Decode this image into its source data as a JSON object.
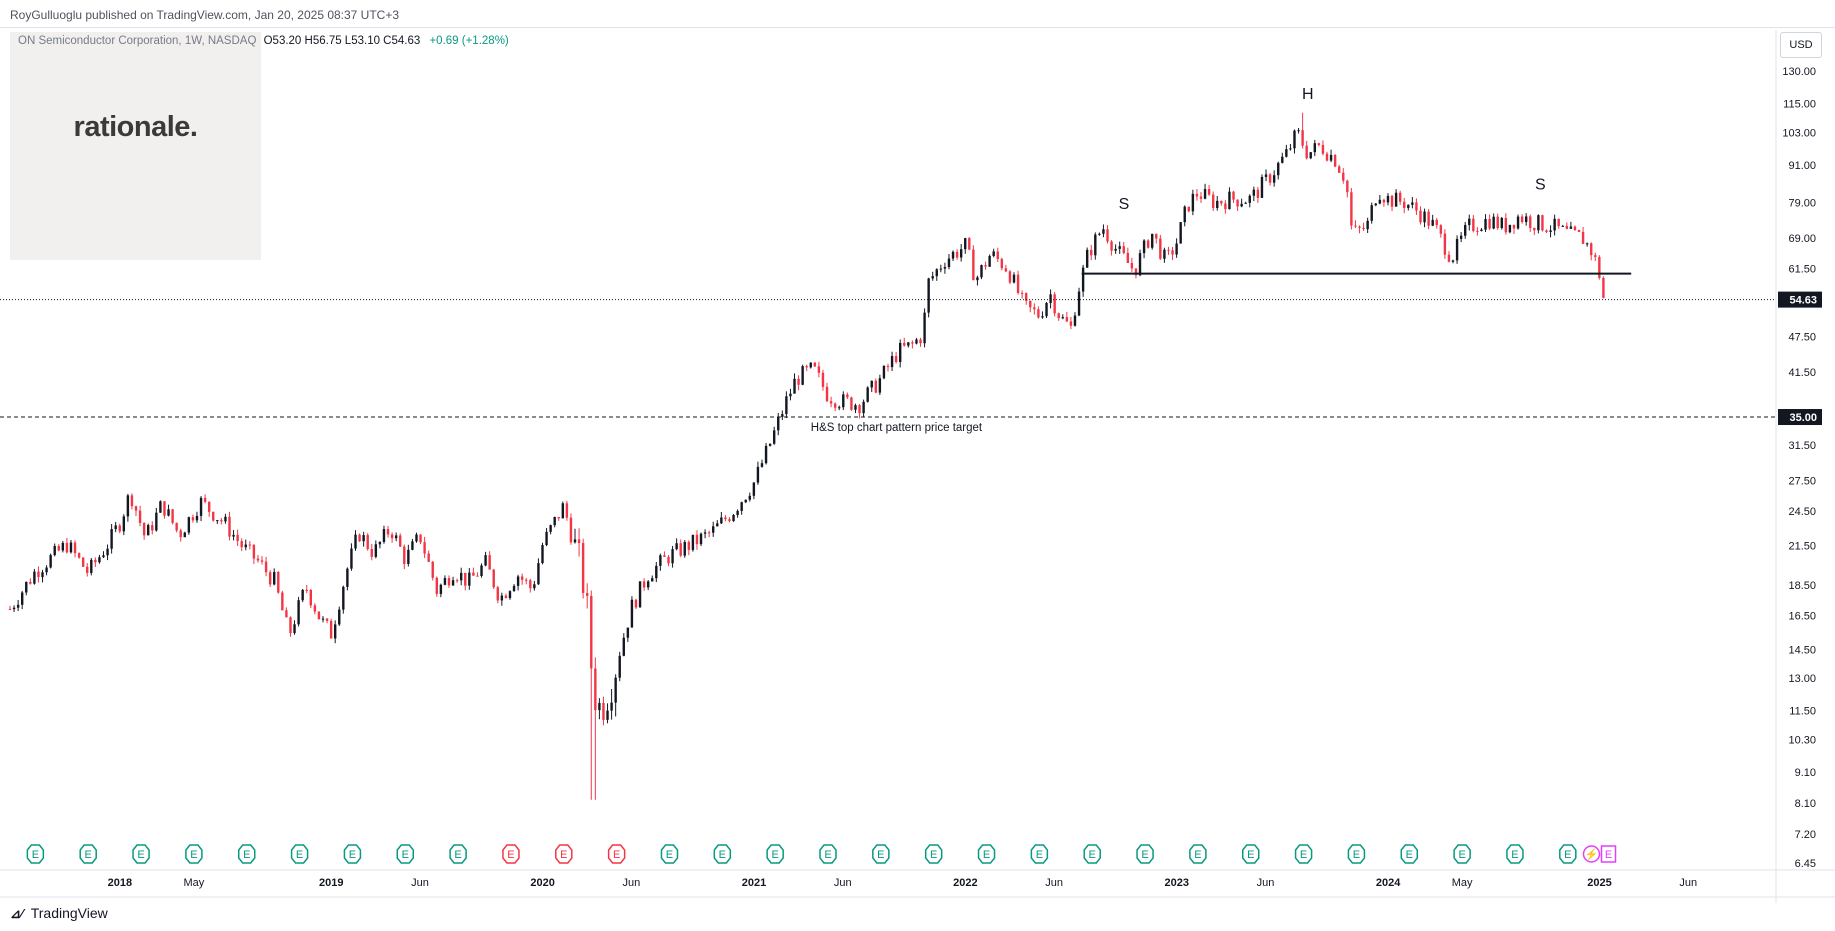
{
  "publisher": "RoyGulluoglu published on TradingView.com, Jan 20, 2025 08:37 UTC+3",
  "legend": {
    "symbol": "ON Semiconductor Corporation, 1W, NASDAQ",
    "ohlc": "O53.20  H56.75  L53.10  C54.63",
    "change": "+0.69 (+1.28%)"
  },
  "logo_text": "rationale.",
  "currency_button": "USD",
  "brand": "TradingView",
  "colors": {
    "up": "#131722",
    "down": "#f23645",
    "accent_purple": "#e040fb",
    "earnings_green": "#089981",
    "earnings_red": "#f23645",
    "price_badge": "#131722",
    "axis_text": "#131722"
  },
  "chart_data": {
    "type": "candlestick",
    "symbol": "ON Semiconductor Corporation",
    "interval": "1W",
    "exchange": "NASDAQ",
    "scale": "log",
    "ylim": [
      6.45,
      130
    ],
    "price_axis_ticks": [
      130.0,
      115.0,
      103.0,
      91.0,
      79.0,
      69.0,
      61.5,
      54.63,
      47.5,
      41.5,
      35.0,
      31.5,
      27.5,
      24.5,
      21.5,
      18.5,
      16.5,
      14.5,
      13.0,
      11.5,
      10.3,
      9.1,
      8.1,
      7.2,
      6.45
    ],
    "price_axis_labels": [
      "130.00",
      "115.00",
      "103.00",
      "91.00",
      "79.00",
      "69.00",
      "61.50",
      "54.63",
      "47.50",
      "41.50",
      "35.00",
      "31.50",
      "27.50",
      "24.50",
      "21.50",
      "18.50",
      "16.50",
      "14.50",
      "13.00",
      "11.50",
      "10.30",
      "9.10",
      "8.10",
      "7.20",
      "6.45"
    ],
    "time_axis_labels": [
      {
        "t": 2018.0,
        "label": "2018",
        "bold": true
      },
      {
        "t": 2018.35,
        "label": "May",
        "bold": false
      },
      {
        "t": 2019.0,
        "label": "2019",
        "bold": true
      },
      {
        "t": 2019.42,
        "label": "Jun",
        "bold": false
      },
      {
        "t": 2020.0,
        "label": "2020",
        "bold": true
      },
      {
        "t": 2020.42,
        "label": "Jun",
        "bold": false
      },
      {
        "t": 2021.0,
        "label": "2021",
        "bold": true
      },
      {
        "t": 2021.42,
        "label": "Jun",
        "bold": false
      },
      {
        "t": 2022.0,
        "label": "2022",
        "bold": true
      },
      {
        "t": 2022.42,
        "label": "Jun",
        "bold": false
      },
      {
        "t": 2023.0,
        "label": "2023",
        "bold": true
      },
      {
        "t": 2023.42,
        "label": "Jun",
        "bold": false
      },
      {
        "t": 2024.0,
        "label": "2024",
        "bold": true
      },
      {
        "t": 2024.35,
        "label": "May",
        "bold": false
      },
      {
        "t": 2025.0,
        "label": "2025",
        "bold": true
      },
      {
        "t": 2025.42,
        "label": "Jun",
        "bold": false
      }
    ],
    "price_path": [
      [
        2017.48,
        16.9
      ],
      [
        2017.6,
        19.5
      ],
      [
        2017.75,
        21.6
      ],
      [
        2017.85,
        19.4
      ],
      [
        2017.95,
        21.8
      ],
      [
        2018.0,
        23.5
      ],
      [
        2018.05,
        26.3
      ],
      [
        2018.12,
        22.1
      ],
      [
        2018.2,
        25.2
      ],
      [
        2018.28,
        22.4
      ],
      [
        2018.38,
        25.4
      ],
      [
        2018.45,
        24.2
      ],
      [
        2018.5,
        23.3
      ],
      [
        2018.58,
        21.4
      ],
      [
        2018.65,
        20.3
      ],
      [
        2018.73,
        18.8
      ],
      [
        2018.8,
        15.3
      ],
      [
        2018.88,
        18.4
      ],
      [
        2018.95,
        16.2
      ],
      [
        2019.0,
        15.4
      ],
      [
        2019.07,
        19.4
      ],
      [
        2019.13,
        22.6
      ],
      [
        2019.2,
        20.9
      ],
      [
        2019.28,
        23.0
      ],
      [
        2019.35,
        20.4
      ],
      [
        2019.42,
        22.3
      ],
      [
        2019.5,
        18.1
      ],
      [
        2019.58,
        19.6
      ],
      [
        2019.65,
        18.7
      ],
      [
        2019.73,
        20.1
      ],
      [
        2019.8,
        17.6
      ],
      [
        2019.88,
        19.3
      ],
      [
        2019.95,
        18.2
      ],
      [
        2020.0,
        21.6
      ],
      [
        2020.07,
        24.0
      ],
      [
        2020.1,
        25.0
      ],
      [
        2020.14,
        22.1
      ],
      [
        2020.2,
        18.4
      ],
      [
        2020.23,
        13.7
      ],
      [
        2020.26,
        11.5
      ],
      [
        2020.3,
        12.2
      ],
      [
        2020.35,
        13.8
      ],
      [
        2020.42,
        17.0
      ],
      [
        2020.5,
        19.3
      ],
      [
        2020.6,
        20.7
      ],
      [
        2020.7,
        21.6
      ],
      [
        2020.8,
        22.6
      ],
      [
        2020.9,
        24.5
      ],
      [
        2021.0,
        27.3
      ],
      [
        2021.08,
        31.9
      ],
      [
        2021.15,
        37.0
      ],
      [
        2021.2,
        40.5
      ],
      [
        2021.28,
        42.0
      ],
      [
        2021.35,
        38.0
      ],
      [
        2021.42,
        37.1
      ],
      [
        2021.5,
        36.8
      ],
      [
        2021.6,
        40.5
      ],
      [
        2021.68,
        44.8
      ],
      [
        2021.75,
        46.0
      ],
      [
        2021.8,
        48.0
      ],
      [
        2021.82,
        58.0
      ],
      [
        2021.9,
        63.5
      ],
      [
        2022.0,
        67.0
      ],
      [
        2022.05,
        59.0
      ],
      [
        2022.12,
        65.0
      ],
      [
        2022.2,
        61.5
      ],
      [
        2022.28,
        53.0
      ],
      [
        2022.35,
        51.5
      ],
      [
        2022.4,
        56.0
      ],
      [
        2022.45,
        51.0
      ],
      [
        2022.5,
        49.0
      ],
      [
        2022.53,
        56.0
      ],
      [
        2022.58,
        65.0
      ],
      [
        2022.65,
        72.0
      ],
      [
        2022.72,
        65.5
      ],
      [
        2022.8,
        61.0
      ],
      [
        2022.88,
        70.5
      ],
      [
        2022.95,
        63.0
      ],
      [
        2023.0,
        68.0
      ],
      [
        2023.05,
        78.0
      ],
      [
        2023.1,
        82.0
      ],
      [
        2023.18,
        79.0
      ],
      [
        2023.25,
        80.0
      ],
      [
        2023.35,
        80.0
      ],
      [
        2023.45,
        88.0
      ],
      [
        2023.52,
        95.0
      ],
      [
        2023.57,
        103.0
      ],
      [
        2023.62,
        95.0
      ],
      [
        2023.68,
        98.0
      ],
      [
        2023.75,
        93.0
      ],
      [
        2023.8,
        86.0
      ],
      [
        2023.83,
        70.0
      ],
      [
        2023.9,
        72.0
      ],
      [
        2023.95,
        83.0
      ],
      [
        2024.0,
        80.0
      ],
      [
        2024.08,
        79.0
      ],
      [
        2024.15,
        76.0
      ],
      [
        2024.22,
        72.0
      ],
      [
        2024.3,
        64.0
      ],
      [
        2024.38,
        72.0
      ],
      [
        2024.48,
        74.0
      ],
      [
        2024.55,
        72.0
      ],
      [
        2024.62,
        75.0
      ],
      [
        2024.7,
        73.0
      ],
      [
        2024.78,
        72.0
      ],
      [
        2024.85,
        70.0
      ],
      [
        2024.92,
        69.0
      ],
      [
        2024.97,
        65.0
      ],
      [
        2025.0,
        60.0
      ],
      [
        2025.02,
        54.63
      ]
    ],
    "annotations": [
      {
        "t": 2022.75,
        "price": 77.0,
        "text": "S"
      },
      {
        "t": 2023.62,
        "price": 117.0,
        "text": "H"
      },
      {
        "t": 2024.72,
        "price": 83.0,
        "text": "S"
      },
      {
        "t": 2021.42,
        "price": 33.2,
        "text": "H&S top chart pattern price target"
      }
    ],
    "neckline": {
      "t_start": 2022.55,
      "t_end": 2025.15,
      "price": 60.3
    },
    "target_price": 35.0,
    "last_price": 54.63,
    "earnings_events": [
      {
        "t": 2017.6,
        "beat": true
      },
      {
        "t": 2017.85,
        "beat": true
      },
      {
        "t": 2018.1,
        "beat": true
      },
      {
        "t": 2018.35,
        "beat": true
      },
      {
        "t": 2018.6,
        "beat": true
      },
      {
        "t": 2018.85,
        "beat": true
      },
      {
        "t": 2019.1,
        "beat": true
      },
      {
        "t": 2019.35,
        "beat": true
      },
      {
        "t": 2019.6,
        "beat": true
      },
      {
        "t": 2019.85,
        "beat": false
      },
      {
        "t": 2020.1,
        "beat": false
      },
      {
        "t": 2020.35,
        "beat": false
      },
      {
        "t": 2020.6,
        "beat": true
      },
      {
        "t": 2020.85,
        "beat": true
      },
      {
        "t": 2021.1,
        "beat": true
      },
      {
        "t": 2021.35,
        "beat": true
      },
      {
        "t": 2021.6,
        "beat": true
      },
      {
        "t": 2021.85,
        "beat": true
      },
      {
        "t": 2022.1,
        "beat": true
      },
      {
        "t": 2022.35,
        "beat": true
      },
      {
        "t": 2022.6,
        "beat": true
      },
      {
        "t": 2022.85,
        "beat": true
      },
      {
        "t": 2023.1,
        "beat": true
      },
      {
        "t": 2023.35,
        "beat": true
      },
      {
        "t": 2023.6,
        "beat": true
      },
      {
        "t": 2023.85,
        "beat": true
      },
      {
        "t": 2024.1,
        "beat": true
      },
      {
        "t": 2024.35,
        "beat": true
      },
      {
        "t": 2024.6,
        "beat": true
      },
      {
        "t": 2024.85,
        "beat": true
      },
      {
        "t": 2025.0,
        "beat": null,
        "upcoming": true
      }
    ],
    "earnings_icon_label": "E",
    "dividend_icon": "lightning-icon"
  }
}
